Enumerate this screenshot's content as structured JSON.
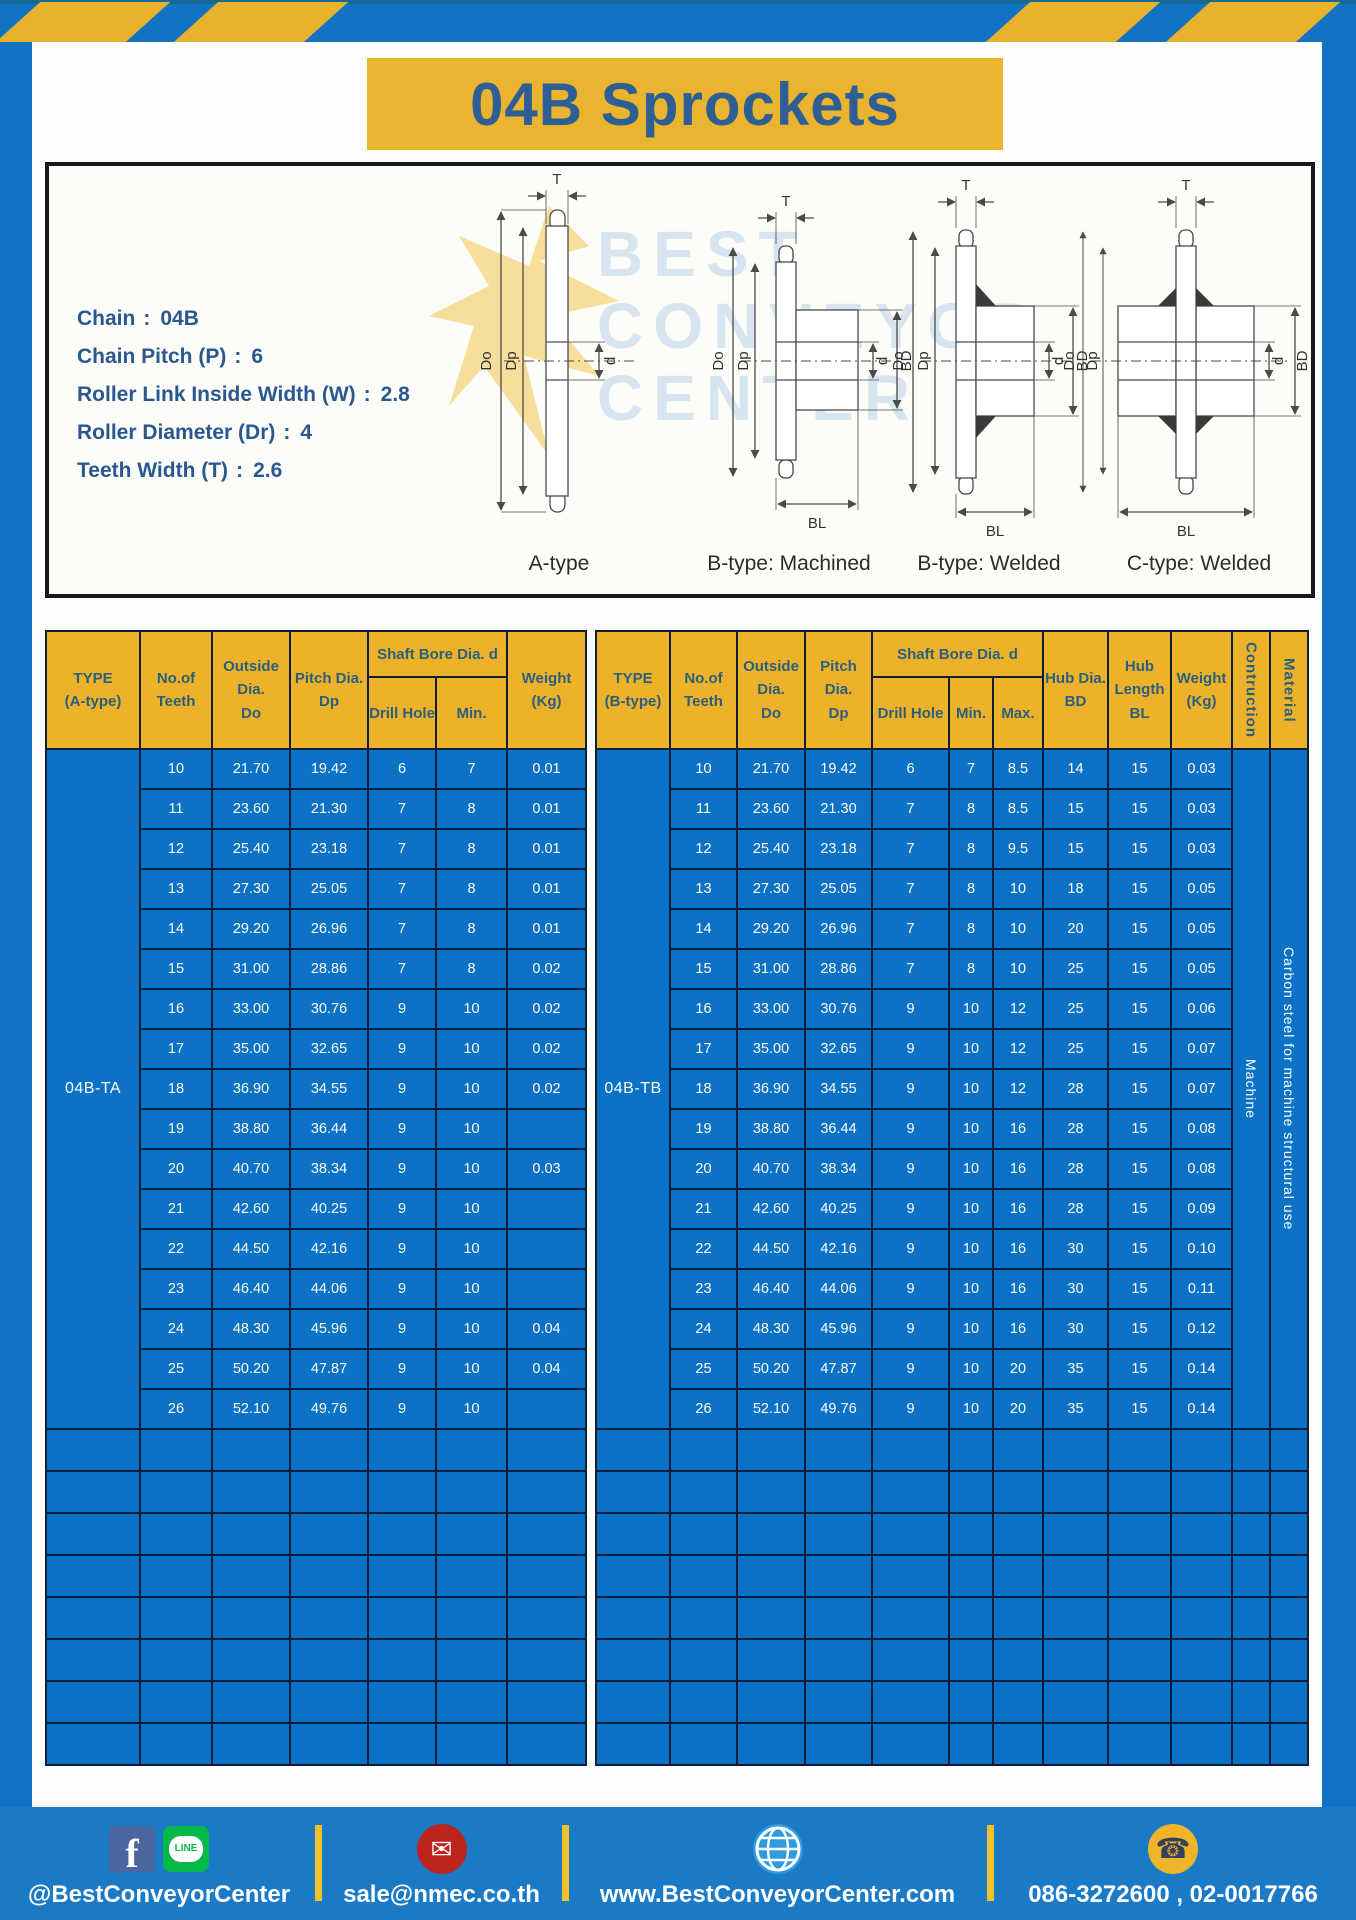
{
  "title": "04B Sprockets",
  "specs_colon": ":",
  "specs": [
    {
      "label": "Chain",
      "value": "04B"
    },
    {
      "label": "Chain Pitch (P)",
      "value": "6"
    },
    {
      "label": "Roller Link Inside Width (W)",
      "value": "2.8"
    },
    {
      "label": "Roller Diameter (Dr)",
      "value": "4"
    },
    {
      "label": "Teeth Width (T)",
      "value": "2.6"
    }
  ],
  "drawings": {
    "captions": [
      "A-type",
      "B-type: Machined",
      "B-type: Welded",
      "C-type: Welded"
    ],
    "dims": {
      "T": "T",
      "Do": "Do",
      "Dp": "Dp",
      "d": "d",
      "BD": "BD",
      "BL": "BL"
    },
    "watermark_lines": [
      "BEST",
      "CONVEYOR",
      "CENTER"
    ]
  },
  "table_a": {
    "header": {
      "type": [
        "TYPE",
        "(A-type)"
      ],
      "teeth": [
        "No.of",
        "Teeth"
      ],
      "outside": [
        "Outside",
        "Dia.",
        "Do"
      ],
      "pitch": [
        "Pitch Dia.",
        "Dp"
      ],
      "shaft_bore": "Shaft Bore Dia. d",
      "drill": "Drill Hole",
      "min": "Min.",
      "weight": [
        "Weight",
        "(Kg)"
      ]
    },
    "type_value": "04B-TA",
    "rows": [
      [
        "10",
        "21.70",
        "19.42",
        "6",
        "7",
        "0.01"
      ],
      [
        "11",
        "23.60",
        "21.30",
        "7",
        "8",
        "0.01"
      ],
      [
        "12",
        "25.40",
        "23.18",
        "7",
        "8",
        "0.01"
      ],
      [
        "13",
        "27.30",
        "25.05",
        "7",
        "8",
        "0.01"
      ],
      [
        "14",
        "29.20",
        "26.96",
        "7",
        "8",
        "0.01"
      ],
      [
        "15",
        "31.00",
        "28.86",
        "7",
        "8",
        "0.02"
      ],
      [
        "16",
        "33.00",
        "30.76",
        "9",
        "10",
        "0.02"
      ],
      [
        "17",
        "35.00",
        "32.65",
        "9",
        "10",
        "0.02"
      ],
      [
        "18",
        "36.90",
        "34.55",
        "9",
        "10",
        "0.02"
      ],
      [
        "19",
        "38.80",
        "36.44",
        "9",
        "10",
        ""
      ],
      [
        "20",
        "40.70",
        "38.34",
        "9",
        "10",
        "0.03"
      ],
      [
        "21",
        "42.60",
        "40.25",
        "9",
        "10",
        ""
      ],
      [
        "22",
        "44.50",
        "42.16",
        "9",
        "10",
        ""
      ],
      [
        "23",
        "46.40",
        "44.06",
        "9",
        "10",
        ""
      ],
      [
        "24",
        "48.30",
        "45.96",
        "9",
        "10",
        "0.04"
      ],
      [
        "25",
        "50.20",
        "47.87",
        "9",
        "10",
        "0.04"
      ],
      [
        "26",
        "52.10",
        "49.76",
        "9",
        "10",
        ""
      ]
    ],
    "empty_rows": 8
  },
  "table_b": {
    "header": {
      "type": [
        "TYPE",
        "(B-type)"
      ],
      "teeth": [
        "No.of",
        "Teeth"
      ],
      "outside": [
        "Outside",
        "Dia.",
        "Do"
      ],
      "pitch": [
        "Pitch Dia.",
        "Dp"
      ],
      "shaft_bore": "Shaft Bore Dia. d",
      "drill": "Drill Hole",
      "min": "Min.",
      "max": "Max.",
      "hub_dia": [
        "Hub Dia.",
        "BD"
      ],
      "hub_len": [
        "Hub",
        "Length",
        "BL"
      ],
      "weight": [
        "Weight",
        "(Kg)"
      ],
      "construction": "Contruction",
      "material": "Material"
    },
    "type_value": "04B-TB",
    "construction_value": "Machine",
    "material_value": "Carbon steel for machine structural use",
    "rows": [
      [
        "10",
        "21.70",
        "19.42",
        "6",
        "7",
        "8.5",
        "14",
        "15",
        "0.03"
      ],
      [
        "11",
        "23.60",
        "21.30",
        "7",
        "8",
        "8.5",
        "15",
        "15",
        "0.03"
      ],
      [
        "12",
        "25.40",
        "23.18",
        "7",
        "8",
        "9.5",
        "15",
        "15",
        "0.03"
      ],
      [
        "13",
        "27.30",
        "25.05",
        "7",
        "8",
        "10",
        "18",
        "15",
        "0.05"
      ],
      [
        "14",
        "29.20",
        "26.96",
        "7",
        "8",
        "10",
        "20",
        "15",
        "0.05"
      ],
      [
        "15",
        "31.00",
        "28.86",
        "7",
        "8",
        "10",
        "25",
        "15",
        "0.05"
      ],
      [
        "16",
        "33.00",
        "30.76",
        "9",
        "10",
        "12",
        "25",
        "15",
        "0.06"
      ],
      [
        "17",
        "35.00",
        "32.65",
        "9",
        "10",
        "12",
        "25",
        "15",
        "0.07"
      ],
      [
        "18",
        "36.90",
        "34.55",
        "9",
        "10",
        "12",
        "28",
        "15",
        "0.07"
      ],
      [
        "19",
        "38.80",
        "36.44",
        "9",
        "10",
        "16",
        "28",
        "15",
        "0.08"
      ],
      [
        "20",
        "40.70",
        "38.34",
        "9",
        "10",
        "16",
        "28",
        "15",
        "0.08"
      ],
      [
        "21",
        "42.60",
        "40.25",
        "9",
        "10",
        "16",
        "28",
        "15",
        "0.09"
      ],
      [
        "22",
        "44.50",
        "42.16",
        "9",
        "10",
        "16",
        "30",
        "15",
        "0.10"
      ],
      [
        "23",
        "46.40",
        "44.06",
        "9",
        "10",
        "16",
        "30",
        "15",
        "0.11"
      ],
      [
        "24",
        "48.30",
        "45.96",
        "9",
        "10",
        "16",
        "30",
        "15",
        "0.12"
      ],
      [
        "25",
        "50.20",
        "47.87",
        "9",
        "10",
        "20",
        "35",
        "15",
        "0.14"
      ],
      [
        "26",
        "52.10",
        "49.76",
        "9",
        "10",
        "20",
        "35",
        "15",
        "0.14"
      ]
    ],
    "empty_rows": 8
  },
  "footer": {
    "line_badge_text": "LINE",
    "items": [
      {
        "icons": [
          "facebook-icon",
          "line-icon"
        ],
        "label": "@BestConveyorCenter"
      },
      {
        "icons": [
          "email-icon"
        ],
        "label": "sale@nmec.co.th"
      },
      {
        "icons": [
          "globe-icon"
        ],
        "label": "www.BestConveyorCenter.com"
      },
      {
        "icons": [
          "phone-icon"
        ],
        "label": "086-3272600 , 02-0017766"
      }
    ]
  },
  "colors": {
    "frame_blue": "#1273c4",
    "stripe_yellow": "#e9b22c",
    "banner_yellow": "#eab430",
    "title_navy": "#2d5f95",
    "table_header_yellow": "#eeb22a",
    "table_header_text": "#2a5f7c",
    "table_body_blue": "#0b72c6",
    "table_border_navy": "#0e1e36",
    "footer_blue": "#1b7ac6"
  }
}
